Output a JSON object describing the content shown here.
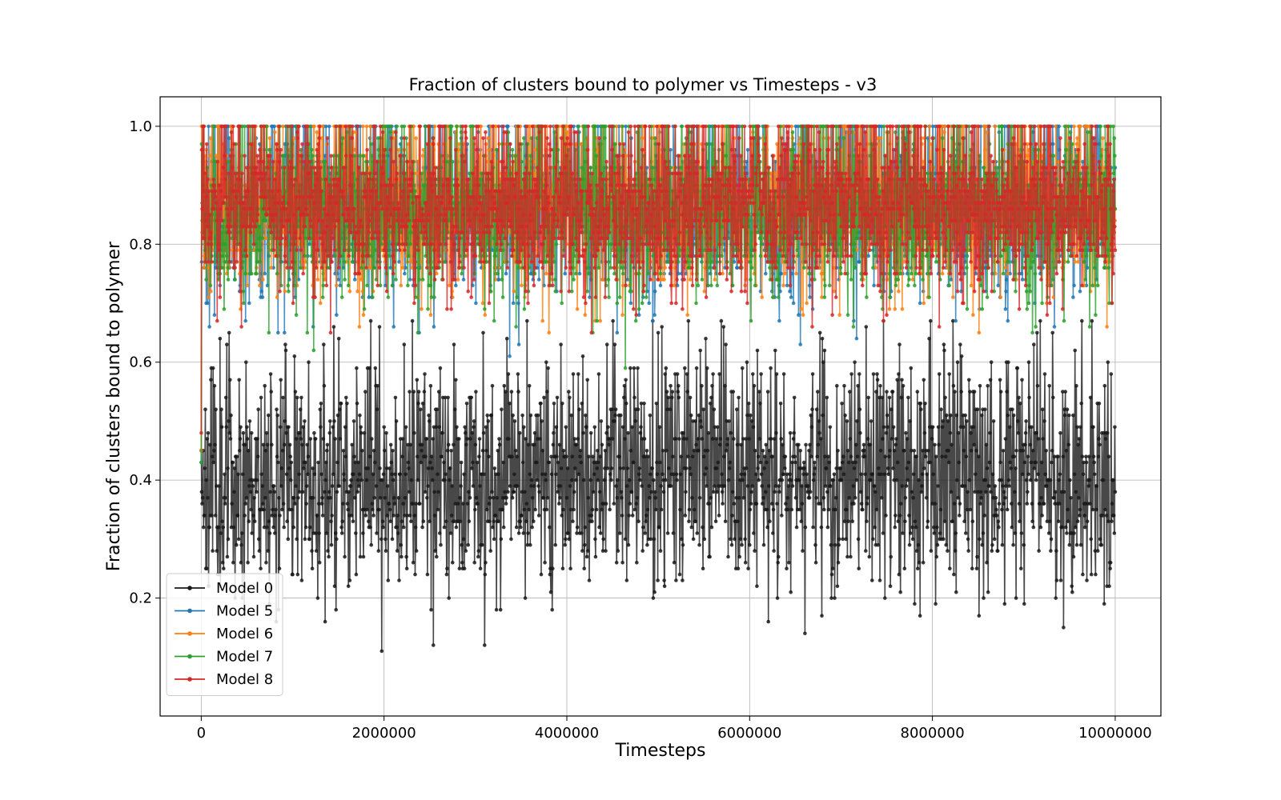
{
  "chart_data": {
    "type": "line",
    "title": "Fraction of clusters bound to polymer vs Timesteps - v3",
    "xlabel": "Timesteps",
    "ylabel": "Fraction of clusters bound to polymer",
    "xlim": [
      -450000,
      10500000
    ],
    "ylim": [
      0.0,
      1.05
    ],
    "xticks": [
      0,
      2000000,
      4000000,
      6000000,
      8000000,
      10000000
    ],
    "xtick_labels": [
      "0",
      "2000000",
      "4000000",
      "6000000",
      "8000000",
      "10000000"
    ],
    "yticks": [
      0.2,
      0.4,
      0.6,
      0.8,
      1.0
    ],
    "ytick_labels": [
      "0.2",
      "0.4",
      "0.6",
      "0.8",
      "1.0"
    ],
    "grid": true,
    "legend_position": "bottom-left",
    "x_start": 0,
    "x_end": 10000000,
    "n_points": 2001,
    "series": [
      {
        "name": "Model 0",
        "color": "#1a1a1a",
        "start": 0.45,
        "mean": 0.41,
        "std": 0.1,
        "min": 0.09,
        "max": 0.67,
        "seed": 11
      },
      {
        "name": "Model 5",
        "color": "#1f77b4",
        "start": 0.43,
        "mean": 0.85,
        "std": 0.07,
        "min": 0.55,
        "max": 1.0,
        "seed": 23
      },
      {
        "name": "Model 6",
        "color": "#ff7f0e",
        "start": 0.45,
        "mean": 0.86,
        "std": 0.07,
        "min": 0.6,
        "max": 1.0,
        "seed": 37
      },
      {
        "name": "Model 7",
        "color": "#2ca02c",
        "start": 0.43,
        "mean": 0.85,
        "std": 0.07,
        "min": 0.58,
        "max": 1.0,
        "seed": 41
      },
      {
        "name": "Model 8",
        "color": "#d62728",
        "start": 0.48,
        "mean": 0.86,
        "std": 0.07,
        "min": 0.62,
        "max": 1.0,
        "seed": 53
      }
    ]
  }
}
